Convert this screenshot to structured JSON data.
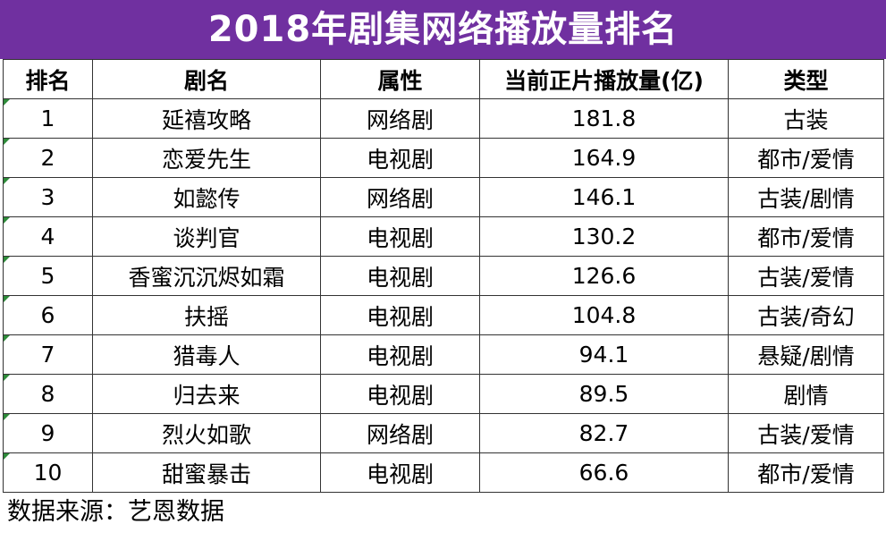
{
  "title": "2018年剧集网络播放量排名",
  "table": {
    "headers": [
      "排名",
      "剧名",
      "属性",
      "当前正片播放量(亿)",
      "类型"
    ],
    "rows": [
      {
        "rank": "1",
        "name": "延禧攻略",
        "attr": "网络剧",
        "views": "181.8",
        "genre": "古装"
      },
      {
        "rank": "2",
        "name": "恋爱先生",
        "attr": "电视剧",
        "views": "164.9",
        "genre": "都市/爱情"
      },
      {
        "rank": "3",
        "name": "如懿传",
        "attr": "网络剧",
        "views": "146.1",
        "genre": "古装/剧情"
      },
      {
        "rank": "4",
        "name": "谈判官",
        "attr": "电视剧",
        "views": "130.2",
        "genre": "都市/爱情"
      },
      {
        "rank": "5",
        "name": "香蜜沉沉烬如霜",
        "attr": "电视剧",
        "views": "126.6",
        "genre": "古装/爱情"
      },
      {
        "rank": "6",
        "name": "扶摇",
        "attr": "电视剧",
        "views": "104.8",
        "genre": "古装/奇幻"
      },
      {
        "rank": "7",
        "name": "猎毒人",
        "attr": "电视剧",
        "views": "94.1",
        "genre": "悬疑/剧情"
      },
      {
        "rank": "8",
        "name": "归去来",
        "attr": "电视剧",
        "views": "89.5",
        "genre": "剧情"
      },
      {
        "rank": "9",
        "name": "烈火如歌",
        "attr": "网络剧",
        "views": "82.7",
        "genre": "古装/爱情"
      },
      {
        "rank": "10",
        "name": "甜蜜暴击",
        "attr": "电视剧",
        "views": "66.6",
        "genre": "都市/爱情"
      }
    ]
  },
  "source": "数据来源：艺恩数据",
  "colors": {
    "title_background": "#7030a0",
    "title_text": "#ffffff",
    "corner_marker": "#2e8b3a"
  }
}
